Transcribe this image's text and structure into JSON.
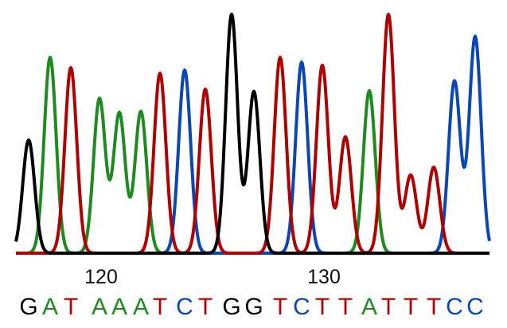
{
  "chart_data": {
    "type": "line",
    "title": "",
    "xlabel": "",
    "ylabel": "",
    "colors": {
      "G": "#000000",
      "A": "#1f8a1f",
      "T": "#b00000",
      "C": "#0a46b4"
    },
    "tick_labels": [
      {
        "position": 120,
        "label": "120"
      },
      {
        "position": 130,
        "label": "130"
      }
    ],
    "bases": [
      {
        "pos": 117,
        "base": "G",
        "peak": 142
      },
      {
        "pos": 118,
        "base": "A",
        "peak": 246
      },
      {
        "pos": 119,
        "base": "T",
        "peak": 233
      },
      {
        "pos": 120,
        "base": "A",
        "peak": 194
      },
      {
        "pos": 121,
        "base": "A",
        "peak": 176
      },
      {
        "pos": 122,
        "base": "A",
        "peak": 178
      },
      {
        "pos": 123,
        "base": "T",
        "peak": 226
      },
      {
        "pos": 124,
        "base": "C",
        "peak": 230
      },
      {
        "pos": 125,
        "base": "T",
        "peak": 206
      },
      {
        "pos": 126,
        "base": "G",
        "peak": 300
      },
      {
        "pos": 127,
        "base": "G",
        "peak": 203
      },
      {
        "pos": 128,
        "base": "T",
        "peak": 246
      },
      {
        "pos": 129,
        "base": "C",
        "peak": 240
      },
      {
        "pos": 130,
        "base": "T",
        "peak": 236
      },
      {
        "pos": 131,
        "base": "T",
        "peak": 146
      },
      {
        "pos": 132,
        "base": "A",
        "peak": 204
      },
      {
        "pos": 133,
        "base": "T",
        "peak": 300
      },
      {
        "pos": 134,
        "base": "T",
        "peak": 98
      },
      {
        "pos": 135,
        "base": "T",
        "peak": 108
      },
      {
        "pos": 136,
        "base": "C",
        "peak": 216
      },
      {
        "pos": 137,
        "base": "C",
        "peak": 272
      }
    ]
  }
}
